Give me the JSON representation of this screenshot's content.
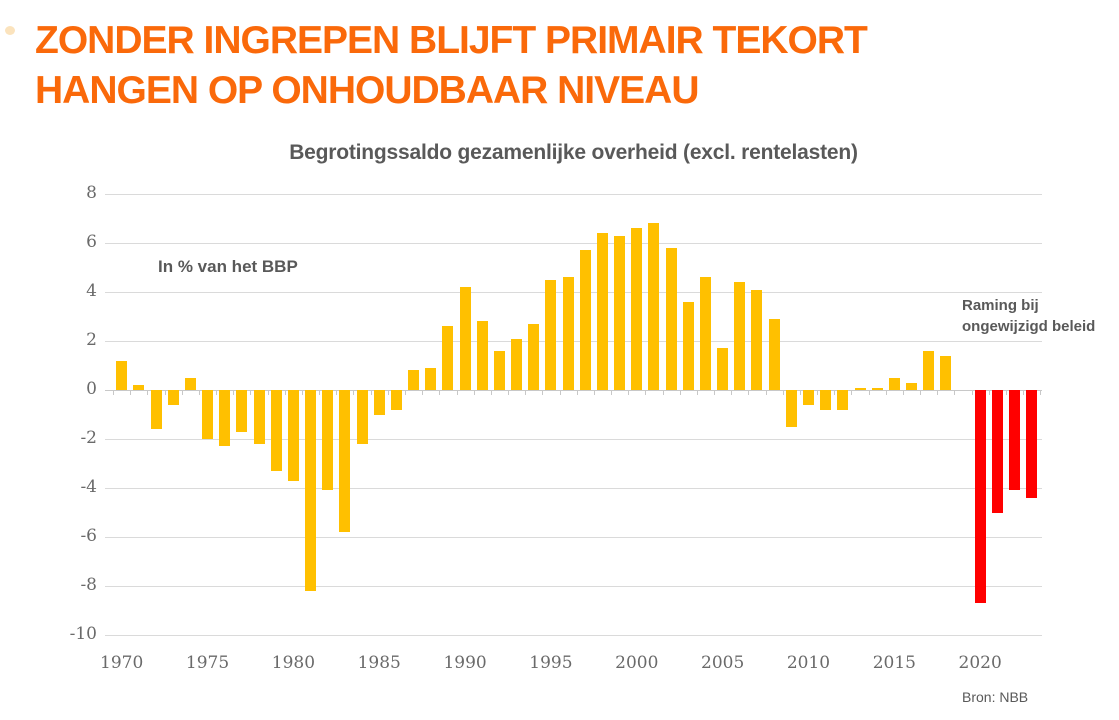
{
  "page": {
    "title_line1": "ZONDER INGREPEN BLIJFT PRIMAIR TEKORT",
    "title_line2": "HANGEN OP ONHOUDBAAR NIVEAU",
    "subtitle": "Begrotingssaldo gezamenlijke overheid (excl. rentelasten)",
    "unit_note": "In % van het BBP",
    "forecast_note_line1": "Raming bij",
    "forecast_note_line2": "ongewijzigd beleid",
    "source": "Bron: NBB"
  },
  "colors": {
    "title_orange": "#FA690A",
    "actual_bar": "#FFC000",
    "forecast_bar": "#FF0000",
    "text_gray": "#595959",
    "tick_gray": "#6A6A6A",
    "gridline_gray": "#DADADA"
  },
  "chart_data": {
    "type": "bar",
    "title": "Begrotingssaldo gezamenlijke overheid (excl. rentelasten)",
    "ylabel": "In % van het BBP",
    "ylim": [
      -10,
      8
    ],
    "y_ticks": [
      8,
      6,
      4,
      2,
      0,
      -2,
      -4,
      -6,
      -8,
      -10
    ],
    "x_tick_labels": [
      "1970",
      "1975",
      "1980",
      "1985",
      "1990",
      "1995",
      "2000",
      "2005",
      "2010",
      "2015",
      "2020"
    ],
    "grid": true,
    "legend_position": "none",
    "annotation": "Raming bij ongewijzigd beleid",
    "forecast_from_year": 2020,
    "years": [
      1970,
      1971,
      1972,
      1973,
      1974,
      1975,
      1976,
      1977,
      1978,
      1979,
      1980,
      1981,
      1982,
      1983,
      1984,
      1985,
      1986,
      1987,
      1988,
      1989,
      1990,
      1991,
      1992,
      1993,
      1994,
      1995,
      1996,
      1997,
      1998,
      1999,
      2000,
      2001,
      2002,
      2003,
      2004,
      2005,
      2006,
      2007,
      2008,
      2009,
      2010,
      2011,
      2012,
      2013,
      2014,
      2015,
      2016,
      2017,
      2018,
      2019,
      2020,
      2021,
      2022,
      2023
    ],
    "values": [
      1.2,
      0.2,
      -1.6,
      -0.6,
      0.5,
      -2.0,
      -2.3,
      -1.7,
      -2.2,
      -3.3,
      -3.7,
      -8.2,
      -4.1,
      -5.8,
      -2.2,
      -1.0,
      -0.8,
      0.8,
      0.9,
      2.6,
      4.2,
      2.8,
      1.6,
      2.1,
      2.7,
      4.5,
      4.6,
      5.7,
      6.4,
      6.3,
      6.6,
      6.8,
      5.8,
      3.6,
      4.6,
      1.7,
      4.4,
      4.1,
      2.9,
      -1.5,
      -0.6,
      -0.8,
      -0.8,
      0.1,
      0.1,
      0.5,
      0.3,
      1.6,
      1.4,
      0.0,
      -8.7,
      -5.0,
      -4.1,
      -4.4
    ]
  }
}
